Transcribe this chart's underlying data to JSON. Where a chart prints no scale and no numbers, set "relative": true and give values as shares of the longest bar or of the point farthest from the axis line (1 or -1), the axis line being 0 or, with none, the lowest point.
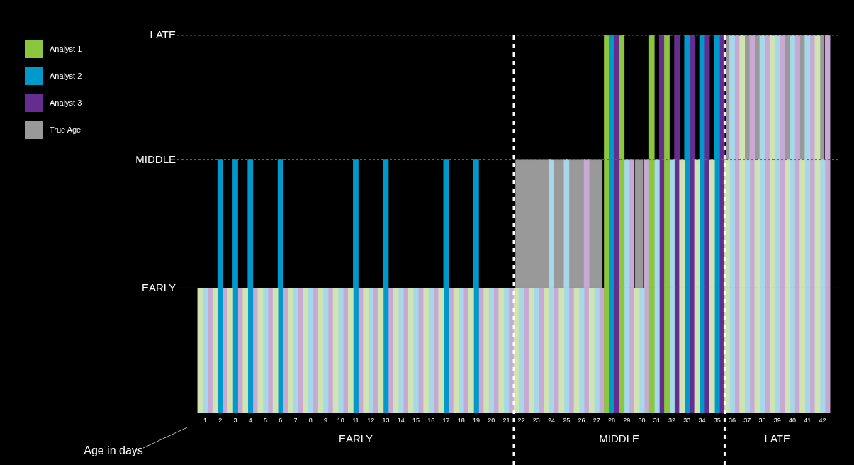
{
  "chart_data": {
    "type": "bar",
    "relative": true,
    "x": [
      1,
      2,
      3,
      4,
      5,
      6,
      7,
      8,
      9,
      10,
      11,
      12,
      13,
      14,
      15,
      16,
      17,
      18,
      19,
      20,
      21,
      22,
      23,
      24,
      25,
      26,
      27,
      28,
      29,
      30,
      31,
      32,
      33,
      34,
      35,
      36,
      37,
      38,
      39,
      40,
      41,
      42
    ],
    "xlim": [
      0.5,
      42.5
    ],
    "xticks": [
      1,
      2,
      3,
      4,
      5,
      6,
      7,
      8,
      9,
      10,
      11,
      12,
      13,
      14,
      15,
      16,
      17,
      18,
      19,
      20,
      21,
      22,
      23,
      24,
      25,
      26,
      27,
      28,
      29,
      30,
      31,
      32,
      33,
      34,
      35,
      36,
      37,
      38,
      39,
      40,
      41,
      42
    ],
    "series": [
      {
        "name": "True Age",
        "type": "area",
        "color": "#999999",
        "x": [
          21.6,
          27.4,
          28.5,
          29.55,
          30.1,
          33,
          35.6,
          42.1
        ],
        "values": [
          0.67,
          0.67,
          null,
          0.67,
          0.67,
          null,
          1,
          1
        ]
      },
      {
        "name": "Analyst 1",
        "color": "#8cc63f",
        "values": [
          0.33,
          0.33,
          0.33,
          0.33,
          0.33,
          0.33,
          0.33,
          0.33,
          0.33,
          0.33,
          0.33,
          0.33,
          0.33,
          0.33,
          0.33,
          0.33,
          0.33,
          0.33,
          0.33,
          0.33,
          0.33,
          0.33,
          0.33,
          0.33,
          0.33,
          0.33,
          0.33,
          1,
          1,
          0.33,
          1,
          1,
          0.67,
          0.67,
          0.67,
          0.67,
          1,
          0.67,
          1,
          0.67,
          0.67,
          1
        ],
        "colors": [
          "#d0e4b3",
          "#d0e4b3",
          "#d0e4b3",
          "#d0e4b3",
          "#d0e4b3",
          "#d0e4b3",
          "#d0e4b3",
          "#d0e4b3",
          "#d0e4b3",
          "#d0e4b3",
          "#d0e4b3",
          "#d0e4b3",
          "#d0e4b3",
          "#d0e4b3",
          "#d0e4b3",
          "#d0e4b3",
          "#d0e4b3",
          "#d0e4b3",
          "#d0e4b3",
          "#d0e4b3",
          "#d0e4b3",
          "#d0e4b3",
          "#d0e4b3",
          "#d0e4b3",
          "#d0e4b3",
          "#d0e4b3",
          "#d0e4b3",
          "#8cc63f",
          "#8cc63f",
          "#d0e4b3",
          "#8cc63f",
          "#8cc63f",
          "#d0e4b3",
          "#d0e4b3",
          "#d0e4b3",
          "#d0e4b3",
          "#d0e4b3",
          "#d0e4b3",
          "#d0e4b3",
          "#d0e4b3",
          "#d0e4b3",
          "#d0e4b3"
        ]
      },
      {
        "name": "Analyst 2",
        "color": "#0099cc",
        "values": [
          0.33,
          0.67,
          0.67,
          0.67,
          0.33,
          0.67,
          0.33,
          0.33,
          0.33,
          0.33,
          0.67,
          0.33,
          0.67,
          0.33,
          0.33,
          0.33,
          0.67,
          0.33,
          0.67,
          0.33,
          0.33,
          0.33,
          0.33,
          0.67,
          0.67,
          0.33,
          0.33,
          1,
          0.67,
          0.33,
          0.67,
          0.67,
          1,
          1,
          1,
          1,
          0.67,
          1,
          1,
          1,
          1,
          0.67
        ],
        "colors": [
          "#a6d8ea",
          "#0099cc",
          "#0099cc",
          "#0099cc",
          "#a6d8ea",
          "#0099cc",
          "#a6d8ea",
          "#a6d8ea",
          "#a6d8ea",
          "#a6d8ea",
          "#0099cc",
          "#a6d8ea",
          "#0099cc",
          "#a6d8ea",
          "#a6d8ea",
          "#a6d8ea",
          "#0099cc",
          "#a6d8ea",
          "#0099cc",
          "#a6d8ea",
          "#a6d8ea",
          "#a6d8ea",
          "#a6d8ea",
          "#a6d8ea",
          "#a6d8ea",
          "#a6d8ea",
          "#a6d8ea",
          "#0099cc",
          "#a6d8ea",
          "#a6d8ea",
          "#a6d8ea",
          "#a6d8ea",
          "#0099cc",
          "#0099cc",
          "#0099cc",
          "#a6d8ea",
          "#a6d8ea",
          "#a6d8ea",
          "#a6d8ea",
          "#a6d8ea",
          "#a6d8ea",
          "#a6d8ea"
        ]
      },
      {
        "name": "Analyst 3",
        "color": "#662d91",
        "values": [
          0.33,
          0.33,
          0.33,
          0.33,
          0.33,
          0.33,
          0.33,
          0.33,
          0.33,
          0.33,
          0.33,
          0.33,
          0.33,
          0.33,
          0.33,
          0.33,
          0.33,
          0.33,
          0.33,
          0.33,
          0.33,
          0.33,
          0.33,
          0.33,
          0.33,
          0.67,
          0.33,
          1,
          0.67,
          0.67,
          1,
          1,
          1,
          1,
          1,
          1,
          1,
          1,
          1,
          1,
          1,
          1
        ],
        "colors": [
          "#c7a9d4",
          "#c7a9d4",
          "#c7a9d4",
          "#c7a9d4",
          "#c7a9d4",
          "#c7a9d4",
          "#c7a9d4",
          "#c7a9d4",
          "#c7a9d4",
          "#c7a9d4",
          "#c7a9d4",
          "#c7a9d4",
          "#c7a9d4",
          "#c7a9d4",
          "#c7a9d4",
          "#c7a9d4",
          "#c7a9d4",
          "#c7a9d4",
          "#c7a9d4",
          "#c7a9d4",
          "#c7a9d4",
          "#c7a9d4",
          "#c7a9d4",
          "#c7a9d4",
          "#c7a9d4",
          "#c7a9d4",
          "#c7a9d4",
          "#662d91",
          "#c7a9d4",
          "#c7a9d4",
          "#662d91",
          "#662d91",
          "#662d91",
          "#662d91",
          "#662d91",
          "#c7a9d4",
          "#c7a9d4",
          "#c7a9d4",
          "#c7a9d4",
          "#c7a9d4",
          "#c7a9d4",
          "#c7a9d4"
        ]
      }
    ],
    "ref_lines": [
      {
        "axis": "x",
        "value": 21.5,
        "color": "#ffffff",
        "line_style": "dashed"
      },
      {
        "axis": "x",
        "value": 35.5,
        "color": "#ffffff",
        "line_style": "dashed"
      },
      {
        "axis": "y",
        "value": 0.33,
        "label": "EARLY",
        "color": "#666666",
        "line_style": "dashed"
      },
      {
        "axis": "y",
        "value": 0.67,
        "label": "MIDDLE",
        "color": "#666666",
        "line_style": "dashed"
      },
      {
        "axis": "y",
        "value": 1,
        "label": "LATE",
        "color": "#666666",
        "line_style": "dashed"
      }
    ],
    "annotations": [
      "EARLY",
      "MIDDLE",
      "LATE",
      "Age in days"
    ],
    "legend": "top left"
  }
}
